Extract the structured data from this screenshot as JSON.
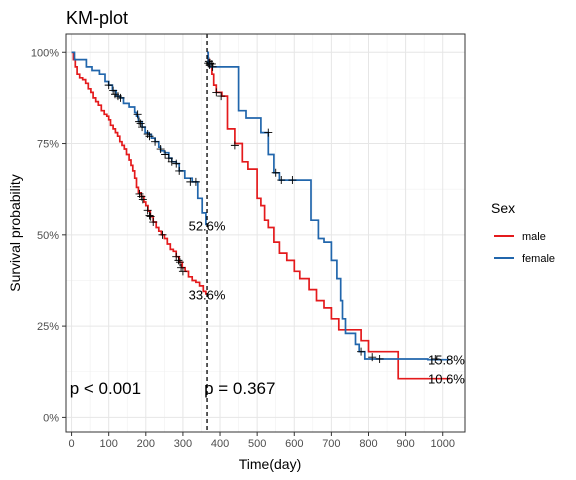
{
  "chart_data": {
    "type": "line",
    "title": "KM-plot",
    "xlabel": "Time(day)",
    "ylabel": "Survival probability",
    "xlim": [
      -15,
      1060
    ],
    "ylim": [
      -0.04,
      1.05
    ],
    "x_ticks": [
      0,
      100,
      200,
      300,
      400,
      500,
      600,
      700,
      800,
      900,
      1000
    ],
    "y_ticks": [
      0,
      0.25,
      0.5,
      0.75,
      1.0
    ],
    "y_tick_labels": [
      "0%",
      "25%",
      "50%",
      "75%",
      "100%"
    ],
    "grid": true,
    "legend": {
      "title": "Sex",
      "placement": "right"
    },
    "landmark_x": 365,
    "series": [
      {
        "name": "male",
        "color": "#e41a1c",
        "segment": "pre-landmark",
        "steps": [
          [
            0,
            1.0
          ],
          [
            5,
            0.98
          ],
          [
            10,
            0.96
          ],
          [
            15,
            0.94
          ],
          [
            22,
            0.93
          ],
          [
            30,
            0.925
          ],
          [
            38,
            0.915
          ],
          [
            45,
            0.9
          ],
          [
            52,
            0.89
          ],
          [
            58,
            0.875
          ],
          [
            65,
            0.865
          ],
          [
            72,
            0.855
          ],
          [
            80,
            0.84
          ],
          [
            88,
            0.83
          ],
          [
            95,
            0.825
          ],
          [
            100,
            0.815
          ],
          [
            105,
            0.8
          ],
          [
            112,
            0.79
          ],
          [
            118,
            0.78
          ],
          [
            124,
            0.77
          ],
          [
            130,
            0.755
          ],
          [
            136,
            0.745
          ],
          [
            142,
            0.735
          ],
          [
            148,
            0.72
          ],
          [
            155,
            0.705
          ],
          [
            160,
            0.69
          ],
          [
            165,
            0.675
          ],
          [
            170,
            0.655
          ],
          [
            175,
            0.63
          ],
          [
            180,
            0.615
          ],
          [
            188,
            0.605
          ],
          [
            195,
            0.59
          ],
          [
            200,
            0.58
          ],
          [
            206,
            0.565
          ],
          [
            212,
            0.55
          ],
          [
            220,
            0.535
          ],
          [
            228,
            0.52
          ],
          [
            235,
            0.51
          ],
          [
            242,
            0.5
          ],
          [
            250,
            0.49
          ],
          [
            258,
            0.475
          ],
          [
            266,
            0.46
          ],
          [
            274,
            0.455
          ],
          [
            282,
            0.44
          ],
          [
            290,
            0.425
          ],
          [
            298,
            0.41
          ],
          [
            306,
            0.4
          ],
          [
            315,
            0.385
          ],
          [
            325,
            0.375
          ],
          [
            335,
            0.37
          ],
          [
            345,
            0.36
          ],
          [
            355,
            0.345
          ],
          [
            362,
            0.336
          ]
        ],
        "censor": [
          [
            183,
            0.612
          ],
          [
            188,
            0.605
          ],
          [
            192,
            0.597
          ],
          [
            205,
            0.567
          ],
          [
            210,
            0.553
          ],
          [
            213,
            0.55
          ],
          [
            220,
            0.535
          ],
          [
            245,
            0.5
          ],
          [
            282,
            0.44
          ],
          [
            288,
            0.43
          ],
          [
            292,
            0.425
          ],
          [
            295,
            0.41
          ],
          [
            300,
            0.4
          ]
        ]
      },
      {
        "name": "female",
        "color": "#2166ac",
        "segment": "pre-landmark",
        "steps": [
          [
            0,
            1.0
          ],
          [
            8,
            0.98
          ],
          [
            40,
            0.96
          ],
          [
            55,
            0.95
          ],
          [
            75,
            0.94
          ],
          [
            90,
            0.92
          ],
          [
            100,
            0.91
          ],
          [
            110,
            0.895
          ],
          [
            120,
            0.88
          ],
          [
            130,
            0.875
          ],
          [
            140,
            0.86
          ],
          [
            155,
            0.85
          ],
          [
            170,
            0.835
          ],
          [
            175,
            0.825
          ],
          [
            180,
            0.81
          ],
          [
            190,
            0.795
          ],
          [
            198,
            0.78
          ],
          [
            208,
            0.775
          ],
          [
            215,
            0.765
          ],
          [
            225,
            0.755
          ],
          [
            235,
            0.74
          ],
          [
            240,
            0.73
          ],
          [
            250,
            0.725
          ],
          [
            262,
            0.71
          ],
          [
            270,
            0.7
          ],
          [
            282,
            0.695
          ],
          [
            290,
            0.675
          ],
          [
            305,
            0.655
          ],
          [
            325,
            0.645
          ],
          [
            340,
            0.6
          ],
          [
            352,
            0.56
          ],
          [
            362,
            0.526
          ]
        ],
        "censor": [
          [
            100,
            0.91
          ],
          [
            112,
            0.895
          ],
          [
            117,
            0.885
          ],
          [
            125,
            0.88
          ],
          [
            132,
            0.875
          ],
          [
            178,
            0.83
          ],
          [
            182,
            0.81
          ],
          [
            186,
            0.805
          ],
          [
            190,
            0.795
          ],
          [
            205,
            0.776
          ],
          [
            210,
            0.77
          ],
          [
            225,
            0.755
          ],
          [
            240,
            0.735
          ],
          [
            252,
            0.72
          ],
          [
            262,
            0.71
          ],
          [
            270,
            0.7
          ],
          [
            282,
            0.695
          ],
          [
            290,
            0.675
          ],
          [
            320,
            0.645
          ],
          [
            335,
            0.645
          ]
        ]
      },
      {
        "name": "male",
        "color": "#e41a1c",
        "segment": "post-landmark",
        "steps": [
          [
            365,
            1.0
          ],
          [
            368,
            0.98
          ],
          [
            372,
            0.96
          ],
          [
            378,
            0.94
          ],
          [
            383,
            0.91
          ],
          [
            390,
            0.89
          ],
          [
            405,
            0.88
          ],
          [
            420,
            0.79
          ],
          [
            440,
            0.75
          ],
          [
            460,
            0.7
          ],
          [
            475,
            0.68
          ],
          [
            500,
            0.6
          ],
          [
            510,
            0.58
          ],
          [
            520,
            0.54
          ],
          [
            530,
            0.52
          ],
          [
            545,
            0.48
          ],
          [
            560,
            0.45
          ],
          [
            580,
            0.43
          ],
          [
            600,
            0.4
          ],
          [
            615,
            0.38
          ],
          [
            640,
            0.35
          ],
          [
            660,
            0.32
          ],
          [
            680,
            0.3
          ],
          [
            700,
            0.27
          ],
          [
            720,
            0.24
          ],
          [
            780,
            0.21
          ],
          [
            800,
            0.18
          ],
          [
            880,
            0.106
          ],
          [
            960,
            0.106
          ],
          [
            1020,
            0.106
          ]
        ],
        "censor": [
          [
            370,
            0.975
          ],
          [
            373,
            0.97
          ],
          [
            378,
            0.968
          ],
          [
            390,
            0.89
          ],
          [
            403,
            0.88
          ],
          [
            440,
            0.745
          ]
        ]
      },
      {
        "name": "female",
        "color": "#2166ac",
        "segment": "post-landmark",
        "steps": [
          [
            365,
            1.0
          ],
          [
            368,
            0.97
          ],
          [
            372,
            0.96
          ],
          [
            390,
            0.96
          ],
          [
            410,
            0.96
          ],
          [
            430,
            0.96
          ],
          [
            450,
            0.84
          ],
          [
            470,
            0.82
          ],
          [
            510,
            0.78
          ],
          [
            530,
            0.72
          ],
          [
            545,
            0.67
          ],
          [
            560,
            0.65
          ],
          [
            590,
            0.65
          ],
          [
            620,
            0.65
          ],
          [
            645,
            0.54
          ],
          [
            665,
            0.49
          ],
          [
            680,
            0.48
          ],
          [
            700,
            0.43
          ],
          [
            715,
            0.38
          ],
          [
            725,
            0.32
          ],
          [
            730,
            0.27
          ],
          [
            738,
            0.23
          ],
          [
            760,
            0.23
          ],
          [
            765,
            0.2
          ],
          [
            775,
            0.18
          ],
          [
            790,
            0.16
          ],
          [
            860,
            0.16
          ],
          [
            960,
            0.158
          ],
          [
            1020,
            0.158
          ]
        ],
        "censor": [
          [
            368,
            0.97
          ],
          [
            372,
            0.965
          ],
          [
            380,
            0.96
          ],
          [
            530,
            0.78
          ],
          [
            550,
            0.67
          ],
          [
            565,
            0.65
          ],
          [
            595,
            0.65
          ],
          [
            780,
            0.18
          ],
          [
            810,
            0.165
          ],
          [
            830,
            0.16
          ],
          [
            980,
            0.16
          ]
        ]
      }
    ],
    "annotations": [
      {
        "text": "52.6%",
        "x": 365,
        "y": 0.526,
        "size": "small",
        "anchor": "middle"
      },
      {
        "text": "33.6%",
        "x": 365,
        "y": 0.336,
        "size": "small",
        "anchor": "middle"
      },
      {
        "text": "15.8%",
        "x": 1010,
        "y": 0.158,
        "size": "small",
        "anchor": "middle"
      },
      {
        "text": "10.6%",
        "x": 1010,
        "y": 0.106,
        "size": "small",
        "anchor": "middle"
      },
      {
        "text": "p < 0.001",
        "x": -5,
        "y": 0.08,
        "size": "big",
        "anchor": "start"
      },
      {
        "text": "p = 0.367",
        "x": 357,
        "y": 0.08,
        "size": "big",
        "anchor": "start"
      }
    ]
  }
}
